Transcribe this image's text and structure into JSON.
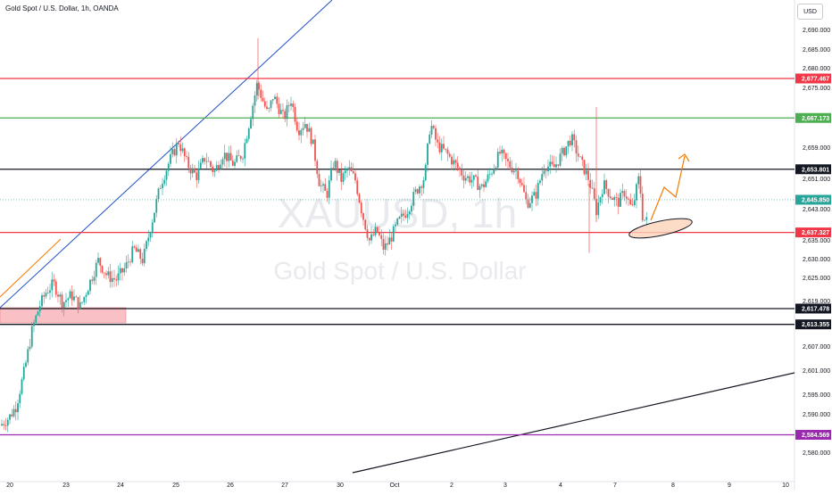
{
  "header": {
    "title": "Gold Spot / U.S. Dollar, 1h, OANDA",
    "currency_button": "USD"
  },
  "watermark": {
    "symbol": "XAUUSD, 1h",
    "name": "Gold Spot / U.S. Dollar"
  },
  "colors": {
    "up_candle": "#26a69a",
    "down_candle": "#ef5350",
    "red_line": "#f23645",
    "green_line": "#4caf50",
    "black_line": "#131722",
    "purple_line": "#9c27b0",
    "blue_trend": "#1e50c8",
    "orange": "#f57c00",
    "zone_fill": "#f8b6bc"
  },
  "chart_data": {
    "type": "candlestick",
    "symbol": "XAUUSD",
    "timeframe": "1h",
    "x_tick_labels": [
      "20",
      "23",
      "24",
      "25",
      "26",
      "27",
      "30",
      "Oct",
      "2",
      "3",
      "4",
      "7",
      "8",
      "9",
      "10"
    ],
    "y_tick_labels": [
      "2,690.000",
      "2,685.000",
      "2,680.000",
      "2,675.000",
      "2,667.000",
      "2,659.000",
      "2,651.000",
      "2,643.000",
      "2,635.000",
      "2,630.000",
      "2,625.000",
      "2,619.000",
      "2,607.000",
      "2,601.000",
      "2,595.000",
      "2,590.000",
      "2,580.000"
    ],
    "ylim": [
      2576,
      2695
    ],
    "horizontal_levels": [
      {
        "value": 2677.467,
        "label": "2,677.467",
        "color": "red"
      },
      {
        "value": 2667.173,
        "label": "2,667.173",
        "color": "green"
      },
      {
        "value": 2653.801,
        "label": "2,653.801",
        "color": "black"
      },
      {
        "value": 2645.85,
        "label": "2,645.850",
        "color": "current"
      },
      {
        "value": 2637.327,
        "label": "2,637.327",
        "color": "red"
      },
      {
        "value": 2617.478,
        "label": "2,617.478",
        "color": "black"
      },
      {
        "value": 2613.355,
        "label": "2,613.355",
        "color": "black"
      },
      {
        "value": 2584.569,
        "label": "2,584.569",
        "color": "purple"
      }
    ],
    "close_path": [
      [
        0,
        2587
      ],
      [
        10,
        2589
      ],
      [
        18,
        2592
      ],
      [
        28,
        2602
      ],
      [
        36,
        2612
      ],
      [
        44,
        2618
      ],
      [
        52,
        2622
      ],
      [
        60,
        2624
      ],
      [
        70,
        2619
      ],
      [
        80,
        2621
      ],
      [
        90,
        2618
      ],
      [
        100,
        2624
      ],
      [
        110,
        2630
      ],
      [
        120,
        2626
      ],
      [
        130,
        2625
      ],
      [
        140,
        2628
      ],
      [
        150,
        2633
      ],
      [
        160,
        2630
      ],
      [
        170,
        2640
      ],
      [
        180,
        2650
      ],
      [
        190,
        2656
      ],
      [
        200,
        2661
      ],
      [
        210,
        2655
      ],
      [
        220,
        2652
      ],
      [
        230,
        2657
      ],
      [
        240,
        2653
      ],
      [
        250,
        2658
      ],
      [
        262,
        2655
      ],
      [
        272,
        2658
      ],
      [
        280,
        2667
      ],
      [
        288,
        2676
      ],
      [
        294,
        2672
      ],
      [
        300,
        2668
      ],
      [
        306,
        2673
      ],
      [
        312,
        2670
      ],
      [
        318,
        2667
      ],
      [
        326,
        2672
      ],
      [
        334,
        2664
      ],
      [
        342,
        2666
      ],
      [
        350,
        2661
      ],
      [
        358,
        2650
      ],
      [
        366,
        2647
      ],
      [
        374,
        2656
      ],
      [
        382,
        2651
      ],
      [
        390,
        2654
      ],
      [
        398,
        2651
      ],
      [
        406,
        2642
      ],
      [
        414,
        2635
      ],
      [
        422,
        2638
      ],
      [
        430,
        2633
      ],
      [
        438,
        2636
      ],
      [
        446,
        2640
      ],
      [
        456,
        2643
      ],
      [
        466,
        2648
      ],
      [
        476,
        2652
      ],
      [
        482,
        2666
      ],
      [
        490,
        2660
      ],
      [
        500,
        2658
      ],
      [
        510,
        2655
      ],
      [
        520,
        2652
      ],
      [
        530,
        2651
      ],
      [
        540,
        2649
      ],
      [
        550,
        2653
      ],
      [
        560,
        2658
      ],
      [
        570,
        2655
      ],
      [
        580,
        2653
      ],
      [
        590,
        2645
      ],
      [
        600,
        2647
      ],
      [
        610,
        2655
      ],
      [
        620,
        2654
      ],
      [
        630,
        2658
      ],
      [
        640,
        2662
      ],
      [
        650,
        2656
      ],
      [
        660,
        2651
      ],
      [
        668,
        2643
      ],
      [
        676,
        2650
      ],
      [
        684,
        2647
      ],
      [
        692,
        2645
      ],
      [
        700,
        2648
      ],
      [
        708,
        2643
      ],
      [
        716,
        2652
      ],
      [
        720,
        2641
      ],
      [
        726,
        2640
      ]
    ]
  }
}
